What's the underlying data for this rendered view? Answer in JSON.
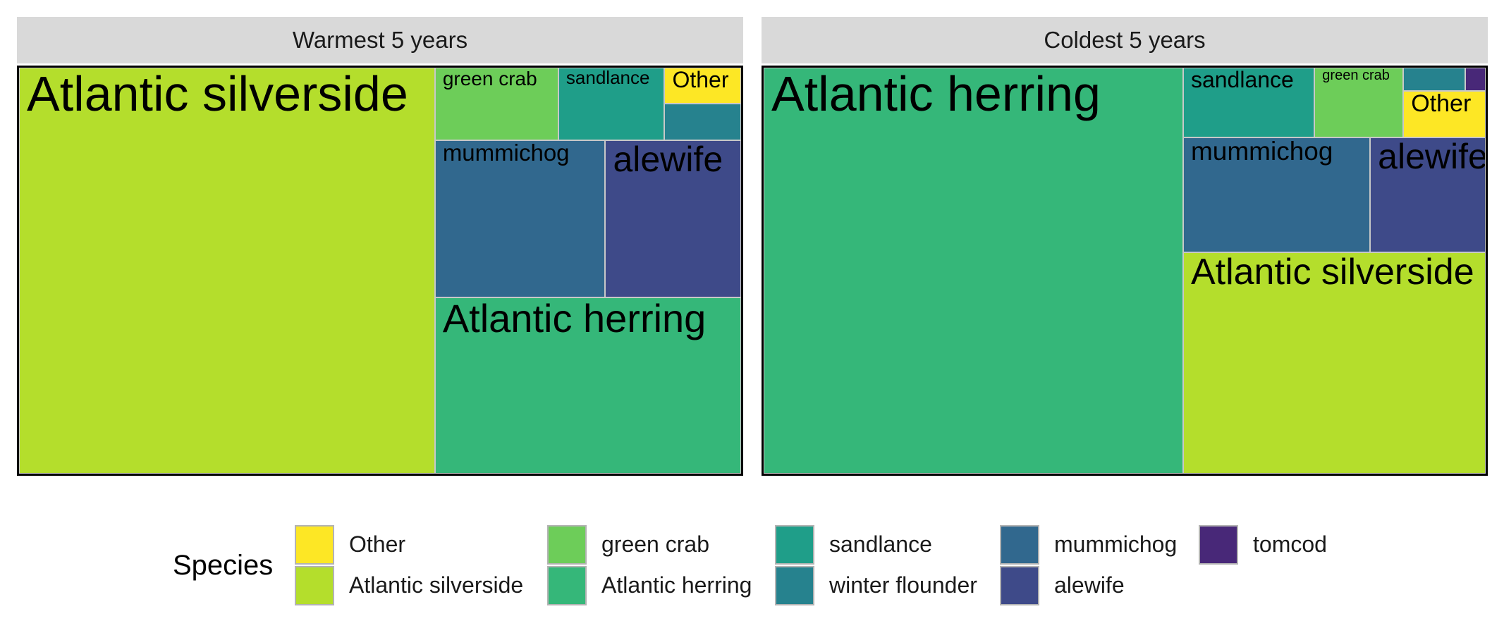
{
  "chart_data": {
    "type": "treemap",
    "legend": {
      "title": "Species",
      "placement": "bottom",
      "entries": [
        {
          "name": "Other",
          "color": "#FDE725"
        },
        {
          "name": "Atlantic silverside",
          "color": "#B4DE2C"
        },
        {
          "name": "green crab",
          "color": "#6DCD59"
        },
        {
          "name": "Atlantic herring",
          "color": "#35B779"
        },
        {
          "name": "sandlance",
          "color": "#1F9E89"
        },
        {
          "name": "winter flounder",
          "color": "#26828E"
        },
        {
          "name": "mummichog",
          "color": "#31688E"
        },
        {
          "name": "alewife",
          "color": "#3E4A89"
        },
        {
          "name": "tomcod",
          "color": "#482878"
        }
      ]
    },
    "panels": [
      {
        "title": "Warmest 5 years",
        "tiles": [
          {
            "species": "Atlantic silverside",
            "label": "Atlantic silverside",
            "share": 0.574
          },
          {
            "species": "Atlantic herring",
            "label": "Atlantic herring",
            "share": 0.183
          },
          {
            "species": "mummichog",
            "label": "mummichog",
            "share": 0.091
          },
          {
            "species": "alewife",
            "label": "alewife",
            "share": 0.073
          },
          {
            "species": "green crab",
            "label": "green crab",
            "share": 0.032
          },
          {
            "species": "sandlance",
            "label": "sandlance",
            "share": 0.027
          },
          {
            "species": "winter flounder",
            "label": "",
            "share": 0.011
          },
          {
            "species": "Other",
            "label": "Other",
            "share": 0.009
          }
        ]
      },
      {
        "title": "Coldest 5 years",
        "tiles": [
          {
            "species": "Atlantic herring",
            "label": "Atlantic herring",
            "share": 0.578
          },
          {
            "species": "Atlantic silverside",
            "label": "Atlantic silverside",
            "share": 0.24
          },
          {
            "species": "mummichog",
            "label": "mummichog",
            "share": 0.065
          },
          {
            "species": "alewife",
            "label": "alewife",
            "share": 0.04
          },
          {
            "species": "sandlance",
            "label": "sandlance",
            "share": 0.033
          },
          {
            "species": "green crab",
            "label": "green crab",
            "share": 0.022
          },
          {
            "species": "Other",
            "label": "Other",
            "share": 0.014
          },
          {
            "species": "winter flounder",
            "label": "",
            "share": 0.006
          },
          {
            "species": "tomcod",
            "label": "",
            "share": 0.002
          }
        ]
      }
    ]
  }
}
